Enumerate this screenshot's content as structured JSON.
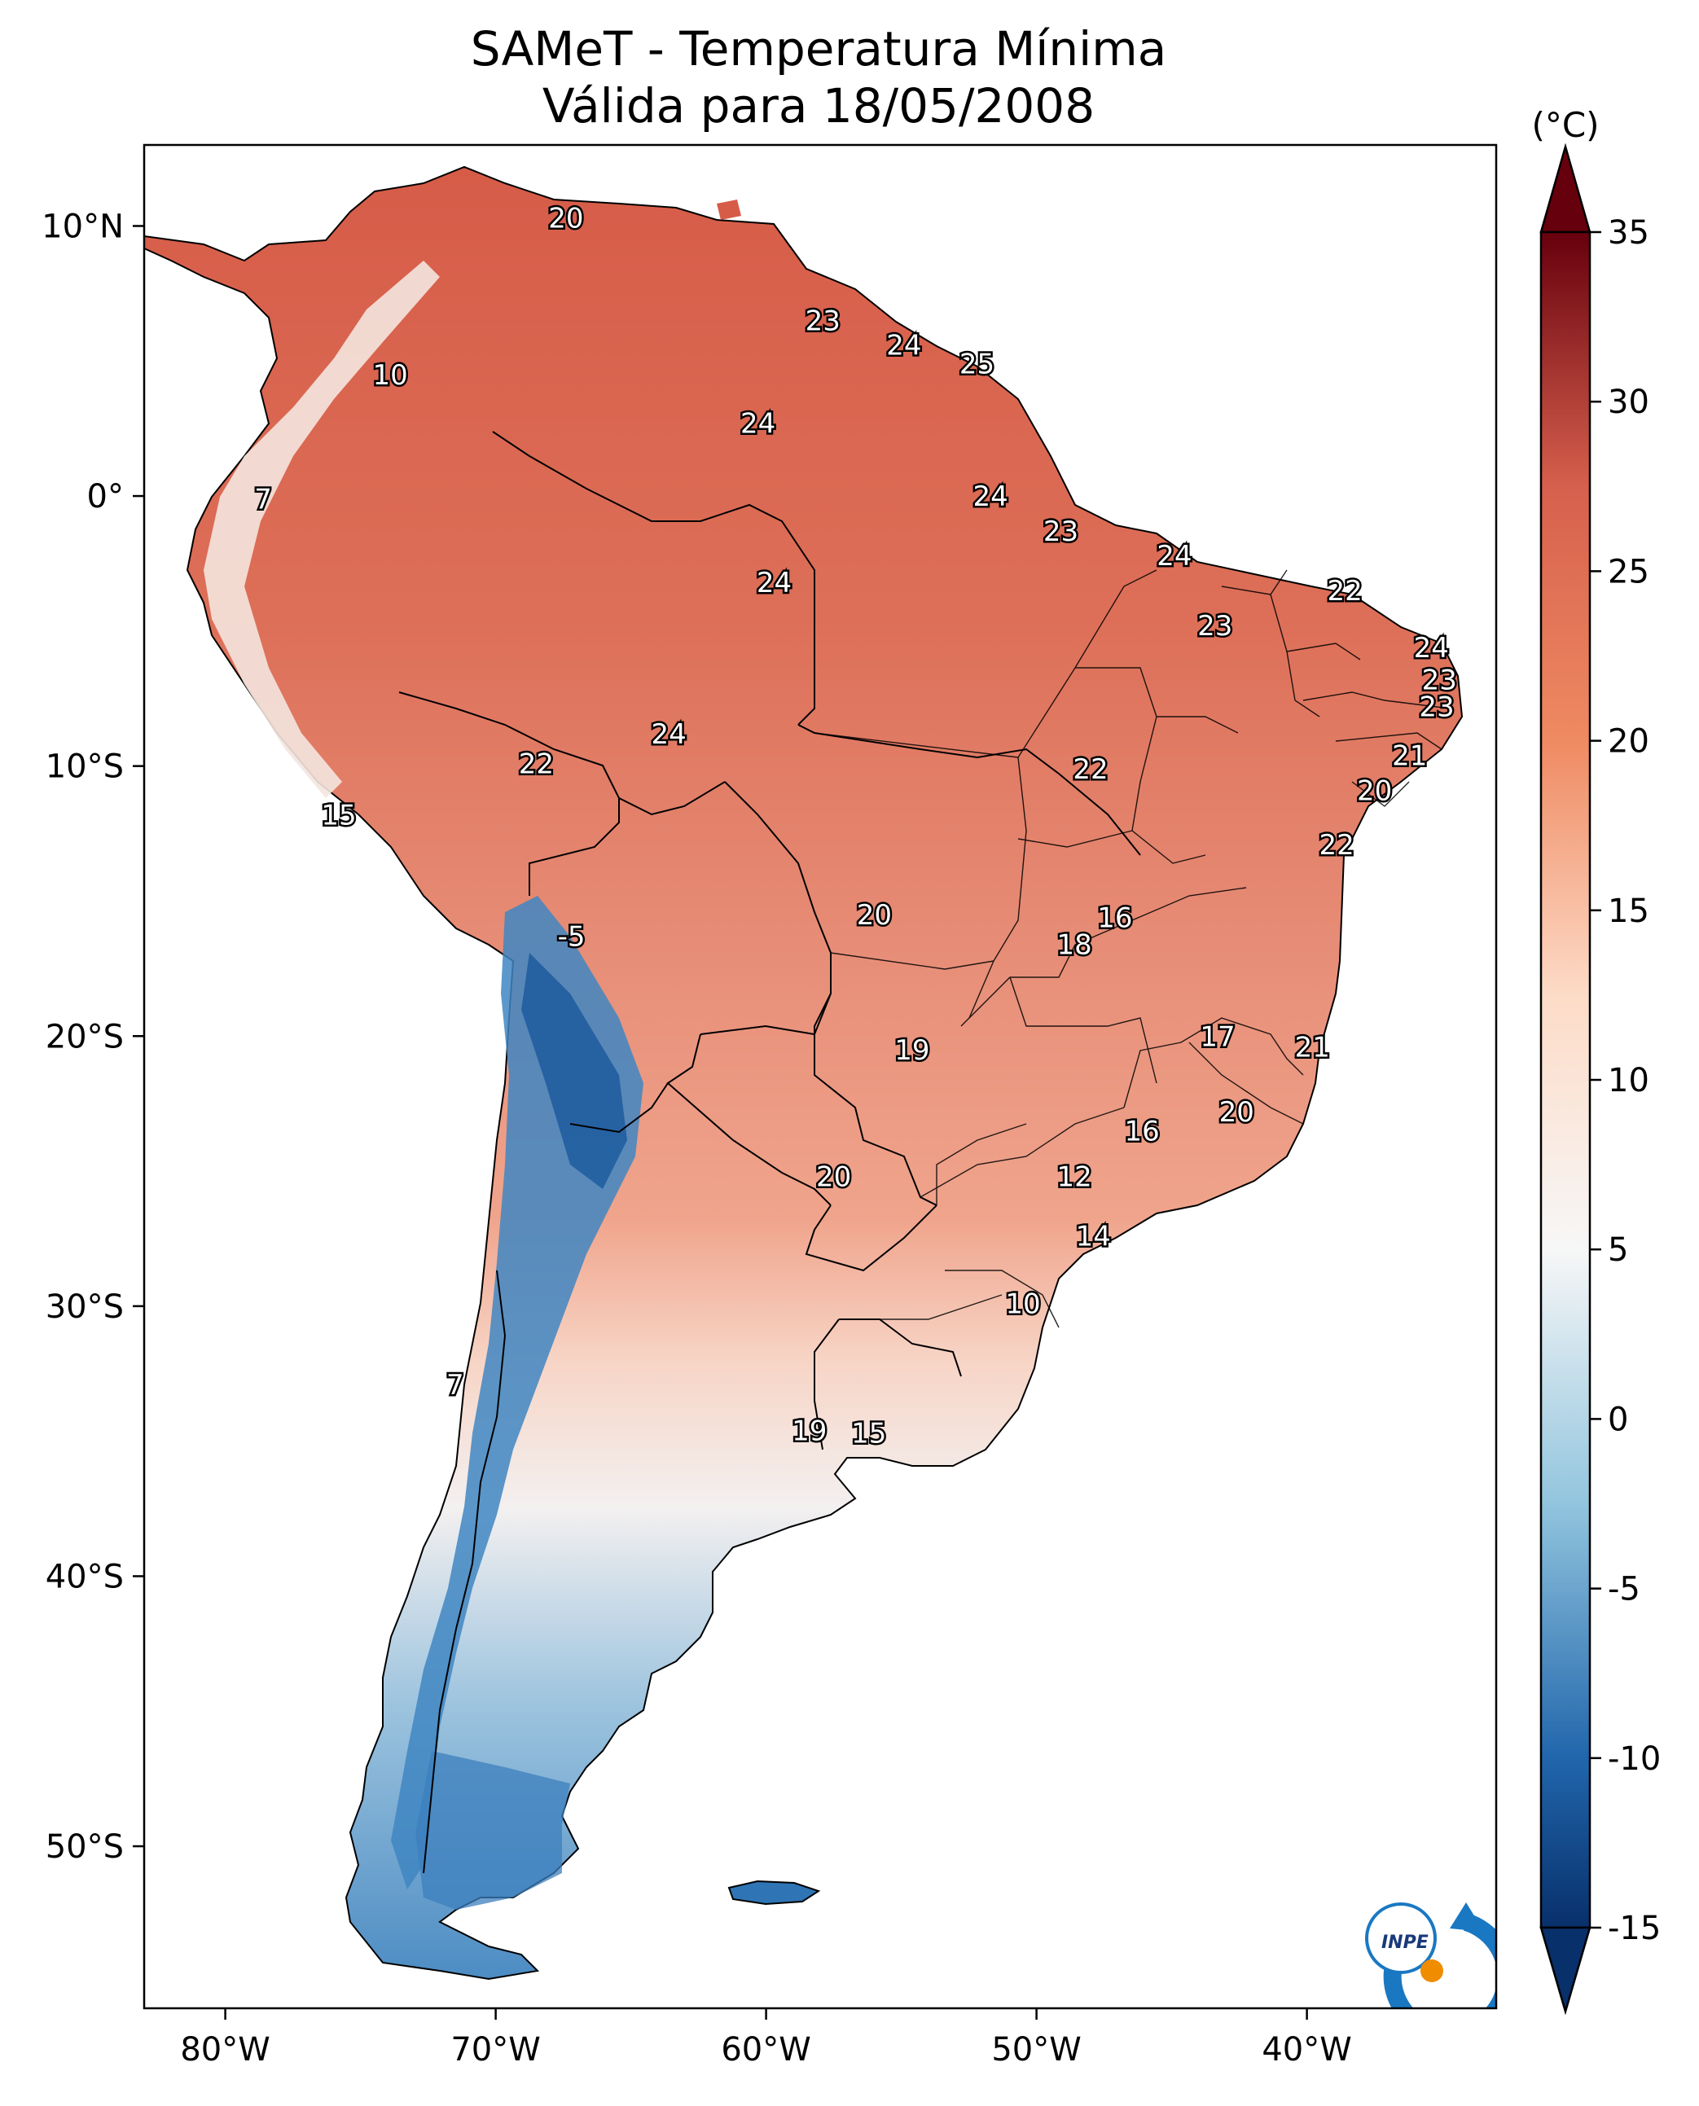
{
  "title": {
    "line1": "SAMeT - Temperatura Mínima",
    "line2": "Válida para 18/05/2008"
  },
  "map": {
    "variable": "Temperatura Mínima",
    "extent": {
      "lon": [
        -83,
        -33
      ],
      "lat": [
        -56,
        13
      ]
    },
    "lon_ticks": [
      "80°W",
      "70°W",
      "60°W",
      "50°W",
      "40°W"
    ],
    "lat_ticks": [
      "10°N",
      "0°",
      "10°S",
      "20°S",
      "30°S",
      "40°S",
      "50°S"
    ],
    "colormap": "RdBu_r",
    "colors": {
      "coldest": "#08306b",
      "cold": "#2f75b5",
      "neutral": "#f7f7f7",
      "warm": "#ef8a62",
      "hottest": "#67000d"
    }
  },
  "colorbar": {
    "unit": "(°C)",
    "range": [
      -15,
      35
    ],
    "ticks": [
      "35",
      "30",
      "25",
      "20",
      "15",
      "10",
      "5",
      "0",
      "-5",
      "-10",
      "-15"
    ]
  },
  "contour_labels": [
    {
      "text": "20",
      "lon": -67.4,
      "lat": 10.3
    },
    {
      "text": "23",
      "lon": -57.9,
      "lat": 6.5
    },
    {
      "text": "24",
      "lon": -54.9,
      "lat": 5.6
    },
    {
      "text": "25",
      "lon": -52.2,
      "lat": 4.9
    },
    {
      "text": "10",
      "lon": -73.9,
      "lat": 4.5
    },
    {
      "text": "24",
      "lon": -60.3,
      "lat": 2.7
    },
    {
      "text": "7",
      "lon": -78.6,
      "lat": -0.1
    },
    {
      "text": "24",
      "lon": -51.7,
      "lat": 0.0
    },
    {
      "text": "23",
      "lon": -49.1,
      "lat": -1.3
    },
    {
      "text": "24",
      "lon": -44.9,
      "lat": -2.2
    },
    {
      "text": "24",
      "lon": -59.7,
      "lat": -3.2
    },
    {
      "text": "22",
      "lon": -38.6,
      "lat": -3.5
    },
    {
      "text": "23",
      "lon": -43.4,
      "lat": -4.8
    },
    {
      "text": "24",
      "lon": -35.4,
      "lat": -5.6
    },
    {
      "text": "23",
      "lon": -35.1,
      "lat": -6.8
    },
    {
      "text": "23",
      "lon": -35.2,
      "lat": -7.8
    },
    {
      "text": "24",
      "lon": -63.6,
      "lat": -8.8
    },
    {
      "text": "21",
      "lon": -36.2,
      "lat": -9.6
    },
    {
      "text": "22",
      "lon": -68.5,
      "lat": -9.9
    },
    {
      "text": "22",
      "lon": -48.0,
      "lat": -10.1
    },
    {
      "text": "20",
      "lon": -37.5,
      "lat": -10.9
    },
    {
      "text": "15",
      "lon": -75.8,
      "lat": -11.8
    },
    {
      "text": "22",
      "lon": -38.9,
      "lat": -12.9
    },
    {
      "text": "20",
      "lon": -56.0,
      "lat": -15.5
    },
    {
      "text": "16",
      "lon": -47.1,
      "lat": -15.6
    },
    {
      "text": "18",
      "lon": -48.6,
      "lat": -16.6
    },
    {
      "text": "-5",
      "lon": -67.2,
      "lat": -16.3
    },
    {
      "text": "17",
      "lon": -43.3,
      "lat": -20.0
    },
    {
      "text": "21",
      "lon": -39.8,
      "lat": -20.4
    },
    {
      "text": "19",
      "lon": -54.6,
      "lat": -20.5
    },
    {
      "text": "20",
      "lon": -42.6,
      "lat": -22.8
    },
    {
      "text": "16",
      "lon": -46.1,
      "lat": -23.5
    },
    {
      "text": "20",
      "lon": -57.5,
      "lat": -25.2
    },
    {
      "text": "12",
      "lon": -48.6,
      "lat": -25.2
    },
    {
      "text": "14",
      "lon": -47.9,
      "lat": -27.4
    },
    {
      "text": "10",
      "lon": -50.5,
      "lat": -29.9
    },
    {
      "text": "7",
      "lon": -71.5,
      "lat": -32.9
    },
    {
      "text": "19",
      "lon": -58.4,
      "lat": -34.6
    },
    {
      "text": "15",
      "lon": -56.2,
      "lat": -34.7
    }
  ],
  "logo": {
    "text": "INPE"
  }
}
